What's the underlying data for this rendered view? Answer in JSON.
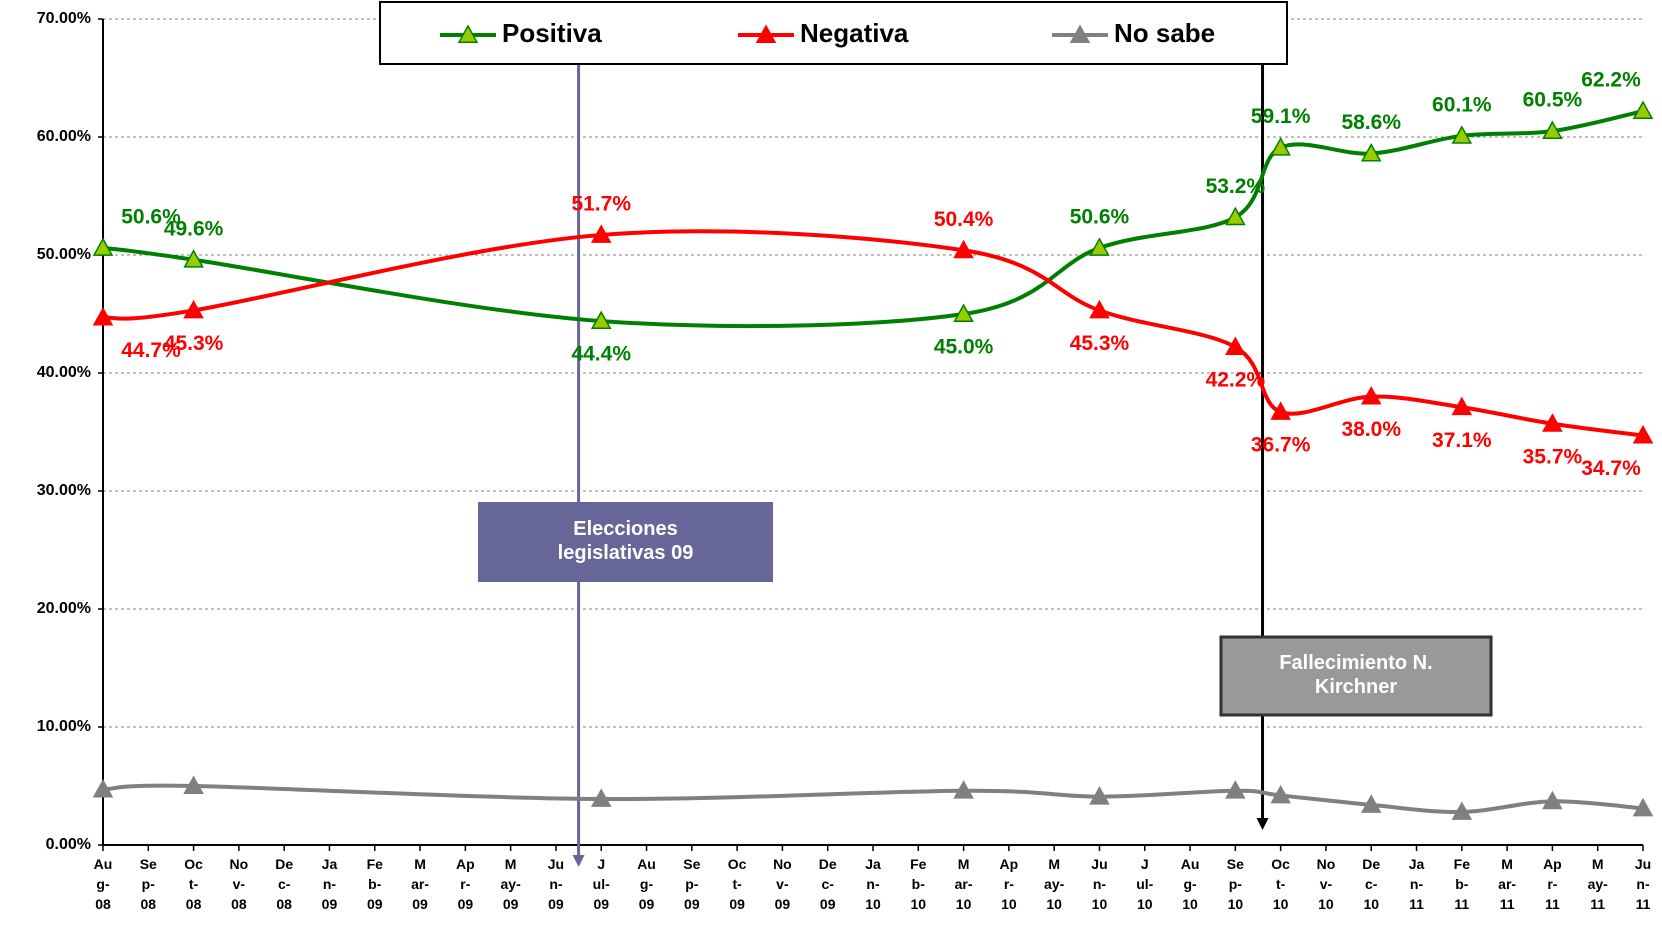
{
  "chart_data": {
    "type": "line",
    "categories": [
      "Au\ng-\n08",
      "Se\np-\n08",
      "Oc\nt-\n08",
      "No\nv-\n08",
      "De\nc-\n08",
      "Ja\nn-\n09",
      "Fe\nb-\n09",
      "M\nar-\n09",
      "Ap\nr-\n09",
      "M\nay-\n09",
      "Ju\nn-\n09",
      "J\nul-\n09",
      "Au\ng-\n09",
      "Se\np-\n09",
      "Oc\nt-\n09",
      "No\nv-\n09",
      "De\nc-\n09",
      "Ja\nn-\n10",
      "Fe\nb-\n10",
      "M\nar-\n10",
      "Ap\nr-\n10",
      "M\nay-\n10",
      "Ju\nn-\n10",
      "J\nul-\n10",
      "Au\ng-\n10",
      "Se\np-\n10",
      "Oc\nt-\n10",
      "No\nv-\n10",
      "De\nc-\n10",
      "Ja\nn-\n11",
      "Fe\nb-\n11",
      "M\nar-\n11",
      "Ap\nr-\n11",
      "M\nay-\n11",
      "Ju\nn-\n11"
    ],
    "series": [
      {
        "name": "Positiva",
        "color": "#008000",
        "marker_color": "#99cc00",
        "values": [
          50.6,
          null,
          49.6,
          null,
          null,
          null,
          null,
          null,
          null,
          null,
          null,
          44.4,
          null,
          null,
          null,
          null,
          null,
          null,
          null,
          45.0,
          null,
          null,
          50.6,
          null,
          null,
          53.2,
          59.1,
          null,
          58.6,
          null,
          60.1,
          null,
          60.5,
          null,
          62.2
        ],
        "value_labels": [
          "50.6%",
          null,
          "49.6%",
          null,
          null,
          null,
          null,
          null,
          null,
          null,
          null,
          "44.4%",
          null,
          null,
          null,
          null,
          null,
          null,
          null,
          "45.0%",
          null,
          null,
          "50.6%",
          null,
          null,
          "53.2%",
          "59.1%",
          null,
          "58.6%",
          null,
          "60.1%",
          null,
          "60.5%",
          null,
          "62.2%"
        ]
      },
      {
        "name": "Negativa",
        "color": "#ff0000",
        "marker_color": "#ff0000",
        "values": [
          44.7,
          null,
          45.3,
          null,
          null,
          null,
          null,
          null,
          null,
          null,
          null,
          51.7,
          null,
          null,
          null,
          null,
          null,
          null,
          null,
          50.4,
          null,
          null,
          45.3,
          null,
          null,
          42.2,
          36.7,
          null,
          38.0,
          null,
          37.1,
          null,
          35.7,
          null,
          34.7
        ],
        "value_labels": [
          "44.7%",
          null,
          "45.3%",
          null,
          null,
          null,
          null,
          null,
          null,
          null,
          null,
          "51.7%",
          null,
          null,
          null,
          null,
          null,
          null,
          null,
          "50.4%",
          null,
          null,
          "45.3%",
          null,
          null,
          "42.2%",
          "36.7%",
          null,
          "38.0%",
          null,
          "37.1%",
          null,
          "35.7%",
          null,
          "34.7%"
        ]
      },
      {
        "name": "No sabe",
        "color": "#808080",
        "marker_color": "#808080",
        "values": [
          4.7,
          null,
          5.0,
          null,
          null,
          null,
          null,
          null,
          null,
          null,
          null,
          3.9,
          null,
          null,
          null,
          null,
          null,
          null,
          null,
          4.6,
          null,
          null,
          4.1,
          null,
          null,
          4.6,
          4.2,
          null,
          3.4,
          null,
          2.8,
          null,
          3.7,
          null,
          3.1
        ]
      }
    ],
    "ylim": [
      0,
      70
    ],
    "yticks": [
      {
        "value": 0,
        "label": "0.00%"
      },
      {
        "value": 10,
        "label": "10.00%"
      },
      {
        "value": 20,
        "label": "20.00%"
      },
      {
        "value": 30,
        "label": "30.00%"
      },
      {
        "value": 40,
        "label": "40.00%"
      },
      {
        "value": 50,
        "label": "50.00%"
      },
      {
        "value": 60,
        "label": "60.00%"
      },
      {
        "value": 70,
        "label": "70.00%"
      }
    ],
    "grid": true,
    "annotations": [
      {
        "text": "Elecciones\nlegislativas 09",
        "color": "#666699"
      },
      {
        "text": "Fallecimiento N.\nKirchner",
        "color": "#999999"
      }
    ]
  }
}
